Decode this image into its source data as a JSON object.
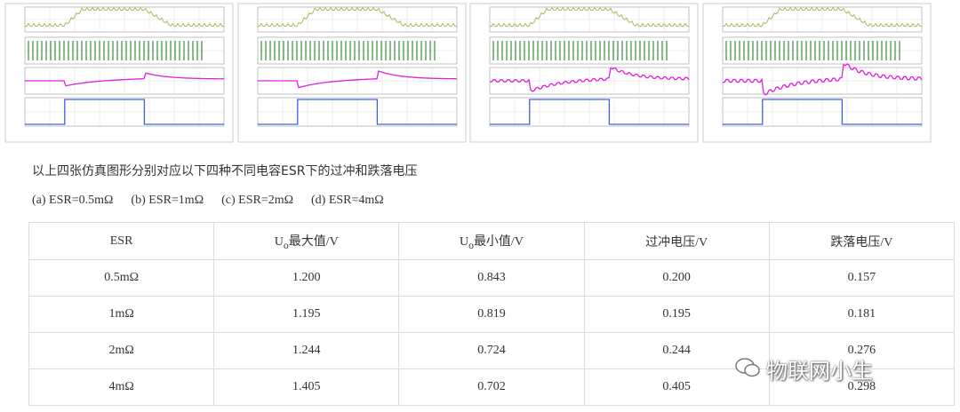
{
  "caption": "以上四张仿真图形分别对应以下四种不同电容ESR下的过冲和跌落电压",
  "options": [
    "(a) ESR=0.5mΩ",
    "(b) ESR=1mΩ",
    "(c) ESR=2mΩ",
    "(d) ESR=4mΩ"
  ],
  "table": {
    "header": [
      {
        "main": "ESR"
      },
      {
        "main": "U",
        "sub": "o",
        "rest": "最大值/V"
      },
      {
        "main": "U",
        "sub": "o",
        "rest": "最小值/V"
      },
      {
        "main": "过冲电压/V"
      },
      {
        "main": "跌落电压/V"
      }
    ],
    "rows": [
      [
        "0.5mΩ",
        "1.200",
        "0.843",
        "0.200",
        "0.157"
      ],
      [
        "1mΩ",
        "1.195",
        "0.819",
        "0.195",
        "0.181"
      ],
      [
        "2mΩ",
        "1.244",
        "0.724",
        "0.244",
        "0.276"
      ],
      [
        "4mΩ",
        "1.405",
        "0.702",
        "0.405",
        "0.298"
      ]
    ]
  },
  "watermark": "物联网小生"
}
